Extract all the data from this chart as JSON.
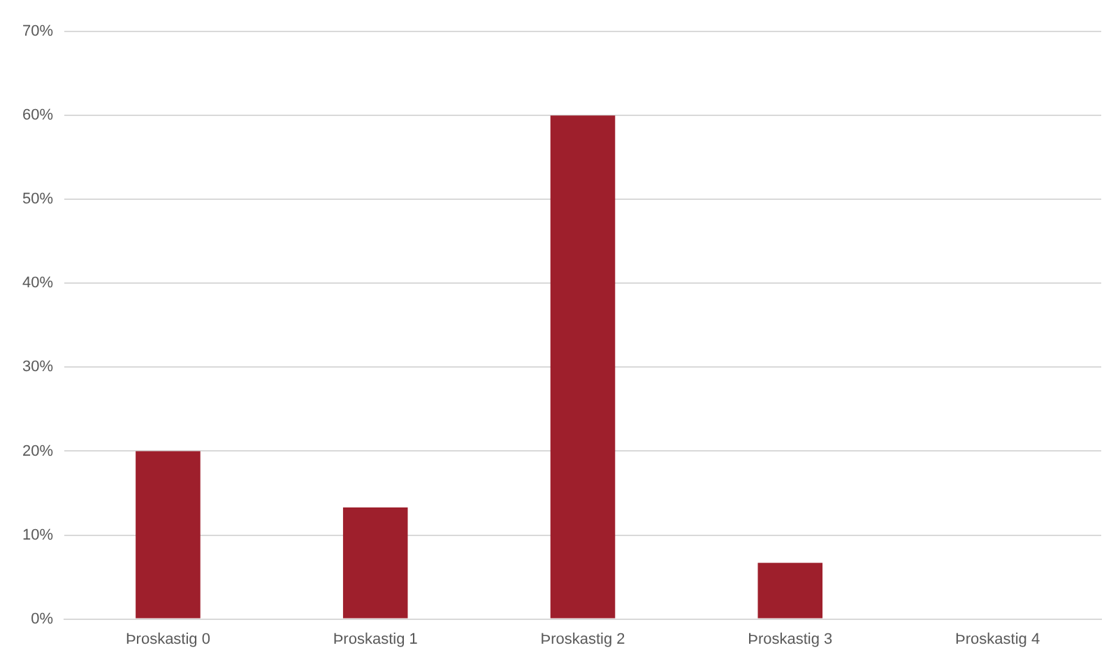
{
  "chart_data": {
    "type": "bar",
    "categories": [
      "Þroskastig 0",
      "Þroskastig 1",
      "Þroskastig 2",
      "Þroskastig 3",
      "Þroskastig 4"
    ],
    "values": [
      20,
      13.3,
      60,
      6.7,
      0
    ],
    "color": "#9e1f2c",
    "ylim": [
      0,
      70
    ],
    "yticks": [
      {
        "value": 0,
        "label": "0%"
      },
      {
        "value": 10,
        "label": "10%"
      },
      {
        "value": 20,
        "label": "20%"
      },
      {
        "value": 30,
        "label": "30%"
      },
      {
        "value": 40,
        "label": "40%"
      },
      {
        "value": 50,
        "label": "50%"
      },
      {
        "value": 60,
        "label": "60%"
      },
      {
        "value": 70,
        "label": "70%"
      }
    ],
    "grid": "y"
  }
}
